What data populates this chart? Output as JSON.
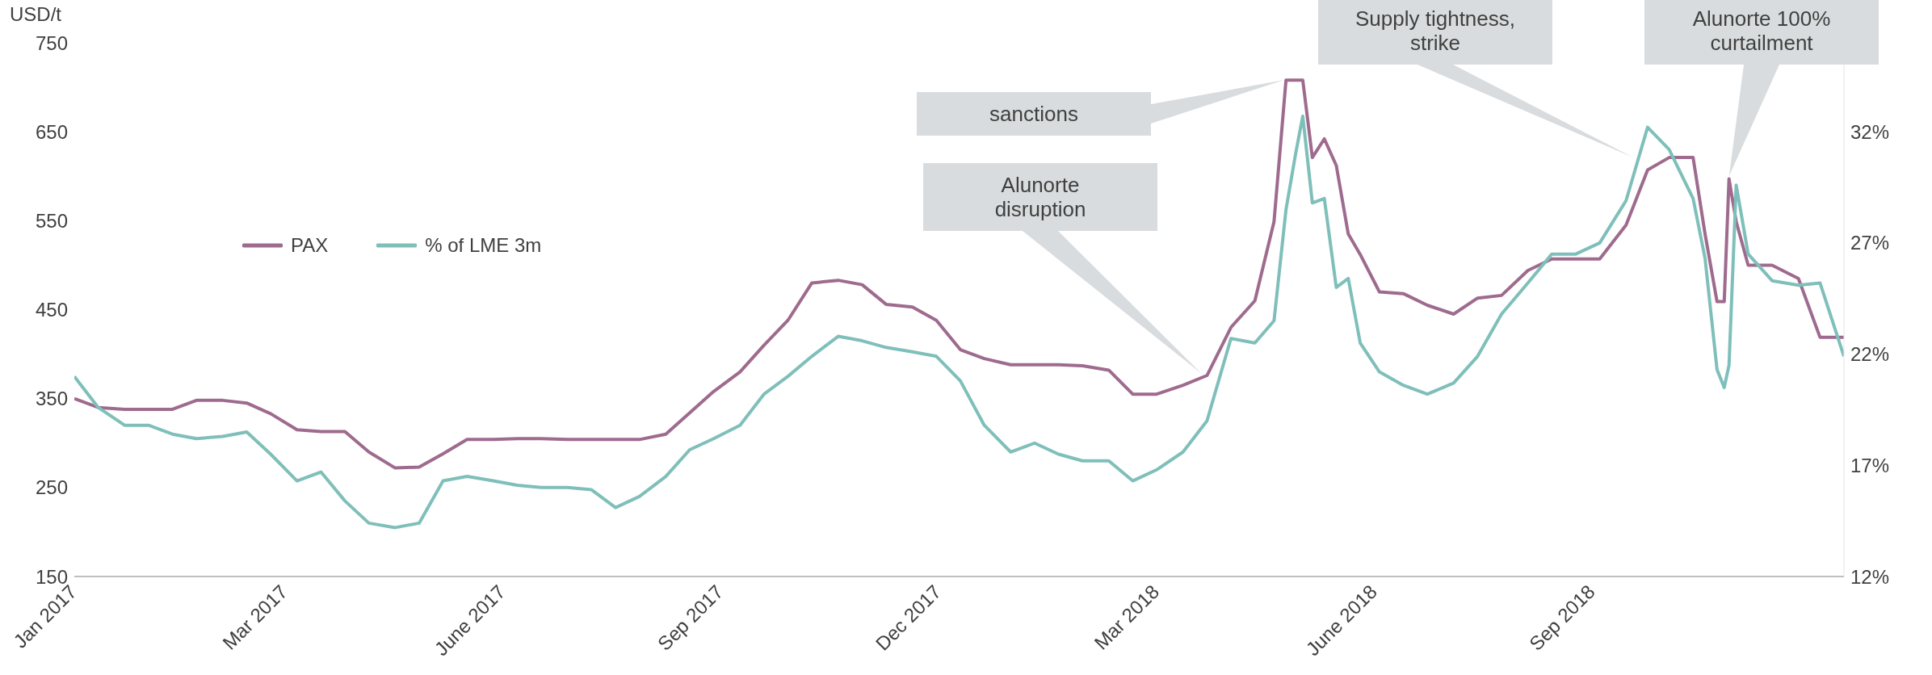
{
  "chart_data": {
    "type": "line",
    "ylabel": "USD/t",
    "x": [
      "2017-01-02",
      "2017-01-12",
      "2017-01-23",
      "2017-02-02",
      "2017-02-12",
      "2017-02-22",
      "2017-03-05",
      "2017-03-15",
      "2017-03-25",
      "2017-04-05",
      "2017-04-15",
      "2017-04-25",
      "2017-05-05",
      "2017-05-16",
      "2017-05-26",
      "2017-06-05",
      "2017-06-15",
      "2017-06-26",
      "2017-07-06",
      "2017-07-16",
      "2017-07-27",
      "2017-08-06",
      "2017-08-16",
      "2017-08-26",
      "2017-09-06",
      "2017-09-16",
      "2017-09-26",
      "2017-10-07",
      "2017-10-17",
      "2017-10-27",
      "2017-11-06",
      "2017-11-17",
      "2017-11-27",
      "2017-12-07",
      "2017-12-18",
      "2017-12-28",
      "2018-01-07",
      "2018-01-17",
      "2018-01-28",
      "2018-02-07",
      "2018-02-17",
      "2018-02-27",
      "2018-03-10",
      "2018-03-20",
      "2018-03-30",
      "2018-04-10",
      "2018-04-20",
      "2018-04-30",
      "2018-05-10",
      "2018-05-18",
      "2018-05-23",
      "2018-05-27",
      "2018-05-30",
      "2018-06-03",
      "2018-06-08",
      "2018-06-13",
      "2018-06-18",
      "2018-06-23",
      "2018-07-01",
      "2018-07-11",
      "2018-07-21",
      "2018-08-01",
      "2018-08-11",
      "2018-08-21",
      "2018-09-01",
      "2018-09-11",
      "2018-09-21",
      "2018-10-01",
      "2018-10-12",
      "2018-10-21",
      "2018-10-30",
      "2018-11-09",
      "2018-11-14",
      "2018-11-19",
      "2018-11-22",
      "2018-11-24",
      "2018-11-27",
      "2018-12-02",
      "2018-12-12",
      "2018-12-23",
      "2019-01-01",
      "2019-01-11"
    ],
    "series": [
      {
        "name": "PAX",
        "color": "#9e6b8e",
        "values": [
          350,
          340,
          338,
          338,
          338,
          348,
          348,
          345,
          333,
          315,
          313,
          313,
          290,
          272,
          273,
          288,
          304,
          304,
          305,
          305,
          304,
          304,
          304,
          304,
          310,
          334,
          358,
          380,
          410,
          438,
          480,
          483,
          478,
          456,
          453,
          438,
          405,
          395,
          388,
          388,
          388,
          387,
          382,
          355,
          355,
          365,
          376,
          430,
          460,
          549,
          708,
          708,
          708,
          621,
          642,
          612,
          535,
          512,
          470,
          468,
          455,
          445,
          463,
          466,
          494,
          507,
          507,
          507,
          545,
          607,
          621,
          621,
          535,
          459,
          459,
          597,
          549,
          500,
          500,
          485,
          419,
          419
        ]
      },
      {
        "name": "% of LME 3m",
        "color": "#7fbfba",
        "axis": "y2",
        "values": [
          21.0,
          19.6,
          18.8,
          18.8,
          18.4,
          18.2,
          18.3,
          18.5,
          17.5,
          16.3,
          16.7,
          15.4,
          14.4,
          14.2,
          14.4,
          16.3,
          16.5,
          16.3,
          16.1,
          16.0,
          16.0,
          15.9,
          15.1,
          15.6,
          16.5,
          17.7,
          18.2,
          18.8,
          20.2,
          21.0,
          21.9,
          22.8,
          22.6,
          22.3,
          22.1,
          21.9,
          20.8,
          18.8,
          17.6,
          18.0,
          17.5,
          17.2,
          17.2,
          16.3,
          16.8,
          17.6,
          19.0,
          22.7,
          22.5,
          23.5,
          28.5,
          31.0,
          32.7,
          28.8,
          29.0,
          25.0,
          25.4,
          22.5,
          21.2,
          20.6,
          20.2,
          20.7,
          21.9,
          23.8,
          25.2,
          26.5,
          26.5,
          27.0,
          28.9,
          32.2,
          31.2,
          29.0,
          26.3,
          21.3,
          20.5,
          21.5,
          29.6,
          26.5,
          25.3,
          25.1,
          25.2,
          21.9
        ]
      }
    ],
    "xlim": [
      "2017-01-02",
      "2019-01-11"
    ],
    "xticks": [
      {
        "value": "2017-01-02",
        "label": "Jan 2017"
      },
      {
        "value": "2017-03-31",
        "label": "Mar 2017"
      },
      {
        "value": "2017-06-30",
        "label": "June 2017"
      },
      {
        "value": "2017-09-29",
        "label": "Sep 2017"
      },
      {
        "value": "2017-12-29",
        "label": "Dec 2017"
      },
      {
        "value": "2018-03-30",
        "label": "Mar 2018"
      },
      {
        "value": "2018-06-29",
        "label": "June 2018"
      },
      {
        "value": "2018-09-28",
        "label": "Sep 2018"
      }
    ],
    "ylim": [
      150,
      750
    ],
    "yticks": [
      150,
      250,
      350,
      450,
      550,
      650,
      750
    ],
    "y2lim": [
      12,
      36
    ],
    "y2ticks": [
      {
        "value": 12,
        "label": "12%"
      },
      {
        "value": 17,
        "label": "17%"
      },
      {
        "value": 22,
        "label": "22%"
      },
      {
        "value": 27,
        "label": "27%"
      },
      {
        "value": 32,
        "label": "32%"
      }
    ],
    "annotations": [
      "sanctions",
      "Alunorte disruption",
      {
        "text": "Supply tightness, strike",
        "x": "2018-10-15",
        "y": 621
      },
      {
        "text": "Alunorte 100% curtailment",
        "x": "2018-11-24",
        "y": 600
      }
    ],
    "legend": "left",
    "grid": false
  }
}
